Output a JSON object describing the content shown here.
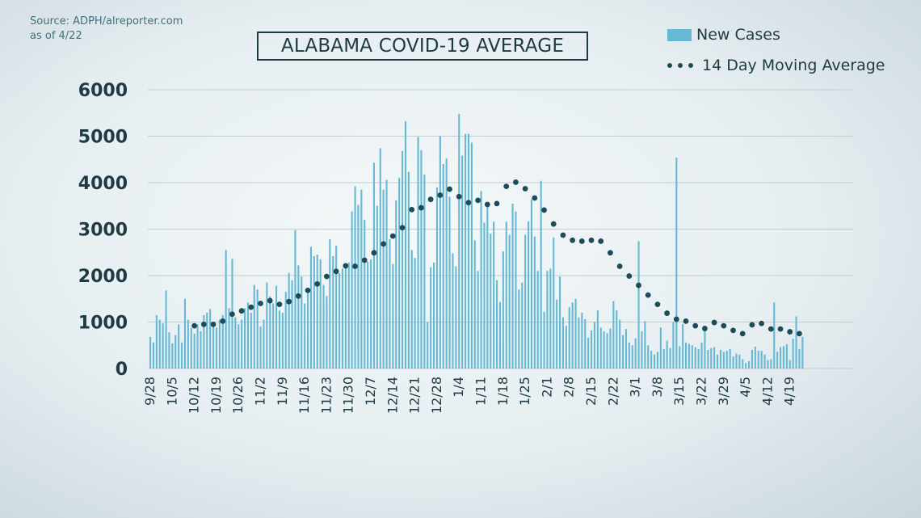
{
  "source": {
    "line1": "Source: ADPH/alreporter.com",
    "line2": "as of 4/22"
  },
  "colors": {
    "bars": "#67b8d3",
    "average": "#1d4b57",
    "text": "#1d3a45",
    "grid": "#c3ccd0"
  },
  "chart_data": {
    "type": "bar",
    "title": "ALABAMA COVID-19 AVERAGE",
    "xlabel": "",
    "ylabel": "",
    "ylim": [
      0,
      6000
    ],
    "yticks": [
      0,
      1000,
      2000,
      3000,
      4000,
      5000,
      6000
    ],
    "grid": true,
    "legend_position": "top-right",
    "x_tick_labels": [
      "9/28",
      "10/5",
      "10/12",
      "10/19",
      "10/26",
      "11/2",
      "11/9",
      "11/16",
      "11/23",
      "11/30",
      "12/7",
      "12/14",
      "12/21",
      "12/28",
      "1/4",
      "1/11",
      "1/18",
      "1/25",
      "2/1",
      "2/8",
      "2/15",
      "2/22",
      "3/1",
      "3/8",
      "3/15",
      "3/22",
      "3/29",
      "4/5",
      "4/12",
      "4/19"
    ],
    "series": [
      {
        "name": "New Cases",
        "type": "bar",
        "start_date": "9/28",
        "interval_days": 1,
        "values": [
          680,
          560,
          1150,
          1050,
          970,
          1680,
          780,
          540,
          720,
          950,
          560,
          1500,
          1050,
          870,
          750,
          950,
          800,
          1150,
          1200,
          1280,
          1000,
          880,
          1050,
          1150,
          2550,
          1300,
          2360,
          1100,
          950,
          1050,
          1300,
          1420,
          1200,
          1800,
          1700,
          900,
          1050,
          1850,
          1550,
          1400,
          1780,
          1250,
          1200,
          1650,
          2060,
          1900,
          2980,
          2220,
          1980,
          1400,
          1620,
          2620,
          2420,
          2450,
          2350,
          1800,
          1560,
          2780,
          2420,
          2640,
          2050,
          2150,
          2180,
          2280,
          3380,
          3920,
          3520,
          3850,
          3200,
          2300,
          2350,
          4430,
          3500,
          4740,
          3850,
          4060,
          2780,
          2250,
          3620,
          4100,
          4680,
          5320,
          4230,
          2550,
          2380,
          4980,
          4700,
          4170,
          1000,
          2180,
          2280,
          3900,
          5000,
          4400,
          4520,
          3700,
          2480,
          2200,
          5480,
          4580,
          5050,
          5050,
          4860,
          2760,
          2100,
          3820,
          3140,
          3580,
          2900,
          3160,
          1900,
          1430,
          2520,
          3160,
          2880,
          3550,
          3380,
          1700,
          1850,
          2880,
          3170,
          3640,
          2840,
          2100,
          4040,
          1220,
          2100,
          2150,
          2820,
          1480,
          1980,
          1100,
          920,
          1320,
          1420,
          1500,
          1100,
          1200,
          1060,
          660,
          820,
          1000,
          1250,
          880,
          800,
          760,
          860,
          1450,
          1250,
          1050,
          720,
          850,
          560,
          500,
          650,
          2740,
          800,
          1020,
          500,
          380,
          300,
          360,
          880,
          420,
          600,
          440,
          1000,
          4540,
          480,
          960,
          560,
          530,
          500,
          460,
          420,
          560,
          920,
          400,
          440,
          460,
          300,
          400,
          360,
          380,
          420,
          260,
          320,
          300,
          200,
          120,
          160,
          400,
          470,
          380,
          380,
          300,
          180,
          200,
          1420,
          360,
          460,
          480,
          520,
          180,
          640,
          1120,
          420,
          680
        ]
      },
      {
        "name": "14 Day Moving Average",
        "type": "dotted-line",
        "points": [
          {
            "x": "10/12",
            "y": 920
          },
          {
            "x": "10/15",
            "y": 950
          },
          {
            "x": "10/18",
            "y": 950
          },
          {
            "x": "10/21",
            "y": 1020
          },
          {
            "x": "10/24",
            "y": 1170
          },
          {
            "x": "10/27",
            "y": 1240
          },
          {
            "x": "10/30",
            "y": 1320
          },
          {
            "x": "11/2",
            "y": 1400
          },
          {
            "x": "11/5",
            "y": 1460
          },
          {
            "x": "11/8",
            "y": 1380
          },
          {
            "x": "11/11",
            "y": 1440
          },
          {
            "x": "11/14",
            "y": 1560
          },
          {
            "x": "11/17",
            "y": 1680
          },
          {
            "x": "11/20",
            "y": 1820
          },
          {
            "x": "11/23",
            "y": 1980
          },
          {
            "x": "11/26",
            "y": 2090
          },
          {
            "x": "11/29",
            "y": 2210
          },
          {
            "x": "12/2",
            "y": 2200
          },
          {
            "x": "12/5",
            "y": 2330
          },
          {
            "x": "12/8",
            "y": 2490
          },
          {
            "x": "12/11",
            "y": 2680
          },
          {
            "x": "12/14",
            "y": 2850
          },
          {
            "x": "12/17",
            "y": 3030
          },
          {
            "x": "12/20",
            "y": 3420
          },
          {
            "x": "12/23",
            "y": 3460
          },
          {
            "x": "12/26",
            "y": 3640
          },
          {
            "x": "12/29",
            "y": 3730
          },
          {
            "x": "1/1",
            "y": 3860
          },
          {
            "x": "1/4",
            "y": 3700
          },
          {
            "x": "1/7",
            "y": 3570
          },
          {
            "x": "1/10",
            "y": 3620
          },
          {
            "x": "1/13",
            "y": 3530
          },
          {
            "x": "1/16",
            "y": 3550
          },
          {
            "x": "1/19",
            "y": 3920
          },
          {
            "x": "1/22",
            "y": 4010
          },
          {
            "x": "1/25",
            "y": 3870
          },
          {
            "x": "1/28",
            "y": 3670
          },
          {
            "x": "1/31",
            "y": 3410
          },
          {
            "x": "2/3",
            "y": 3110
          },
          {
            "x": "2/6",
            "y": 2870
          },
          {
            "x": "2/9",
            "y": 2760
          },
          {
            "x": "2/12",
            "y": 2740
          },
          {
            "x": "2/15",
            "y": 2760
          },
          {
            "x": "2/18",
            "y": 2740
          },
          {
            "x": "2/21",
            "y": 2490
          },
          {
            "x": "2/24",
            "y": 2200
          },
          {
            "x": "2/27",
            "y": 1990
          },
          {
            "x": "3/2",
            "y": 1790
          },
          {
            "x": "3/5",
            "y": 1580
          },
          {
            "x": "3/8",
            "y": 1380
          },
          {
            "x": "3/11",
            "y": 1190
          },
          {
            "x": "3/14",
            "y": 1060
          },
          {
            "x": "3/17",
            "y": 1020
          },
          {
            "x": "3/20",
            "y": 920
          },
          {
            "x": "3/23",
            "y": 860
          },
          {
            "x": "3/26",
            "y": 990
          },
          {
            "x": "3/29",
            "y": 920
          },
          {
            "x": "4/1",
            "y": 820
          },
          {
            "x": "4/4",
            "y": 750
          },
          {
            "x": "4/7",
            "y": 940
          },
          {
            "x": "4/10",
            "y": 970
          },
          {
            "x": "4/13",
            "y": 850
          },
          {
            "x": "4/16",
            "y": 850
          },
          {
            "x": "4/19",
            "y": 790
          },
          {
            "x": "4/22",
            "y": 750
          }
        ]
      }
    ]
  }
}
